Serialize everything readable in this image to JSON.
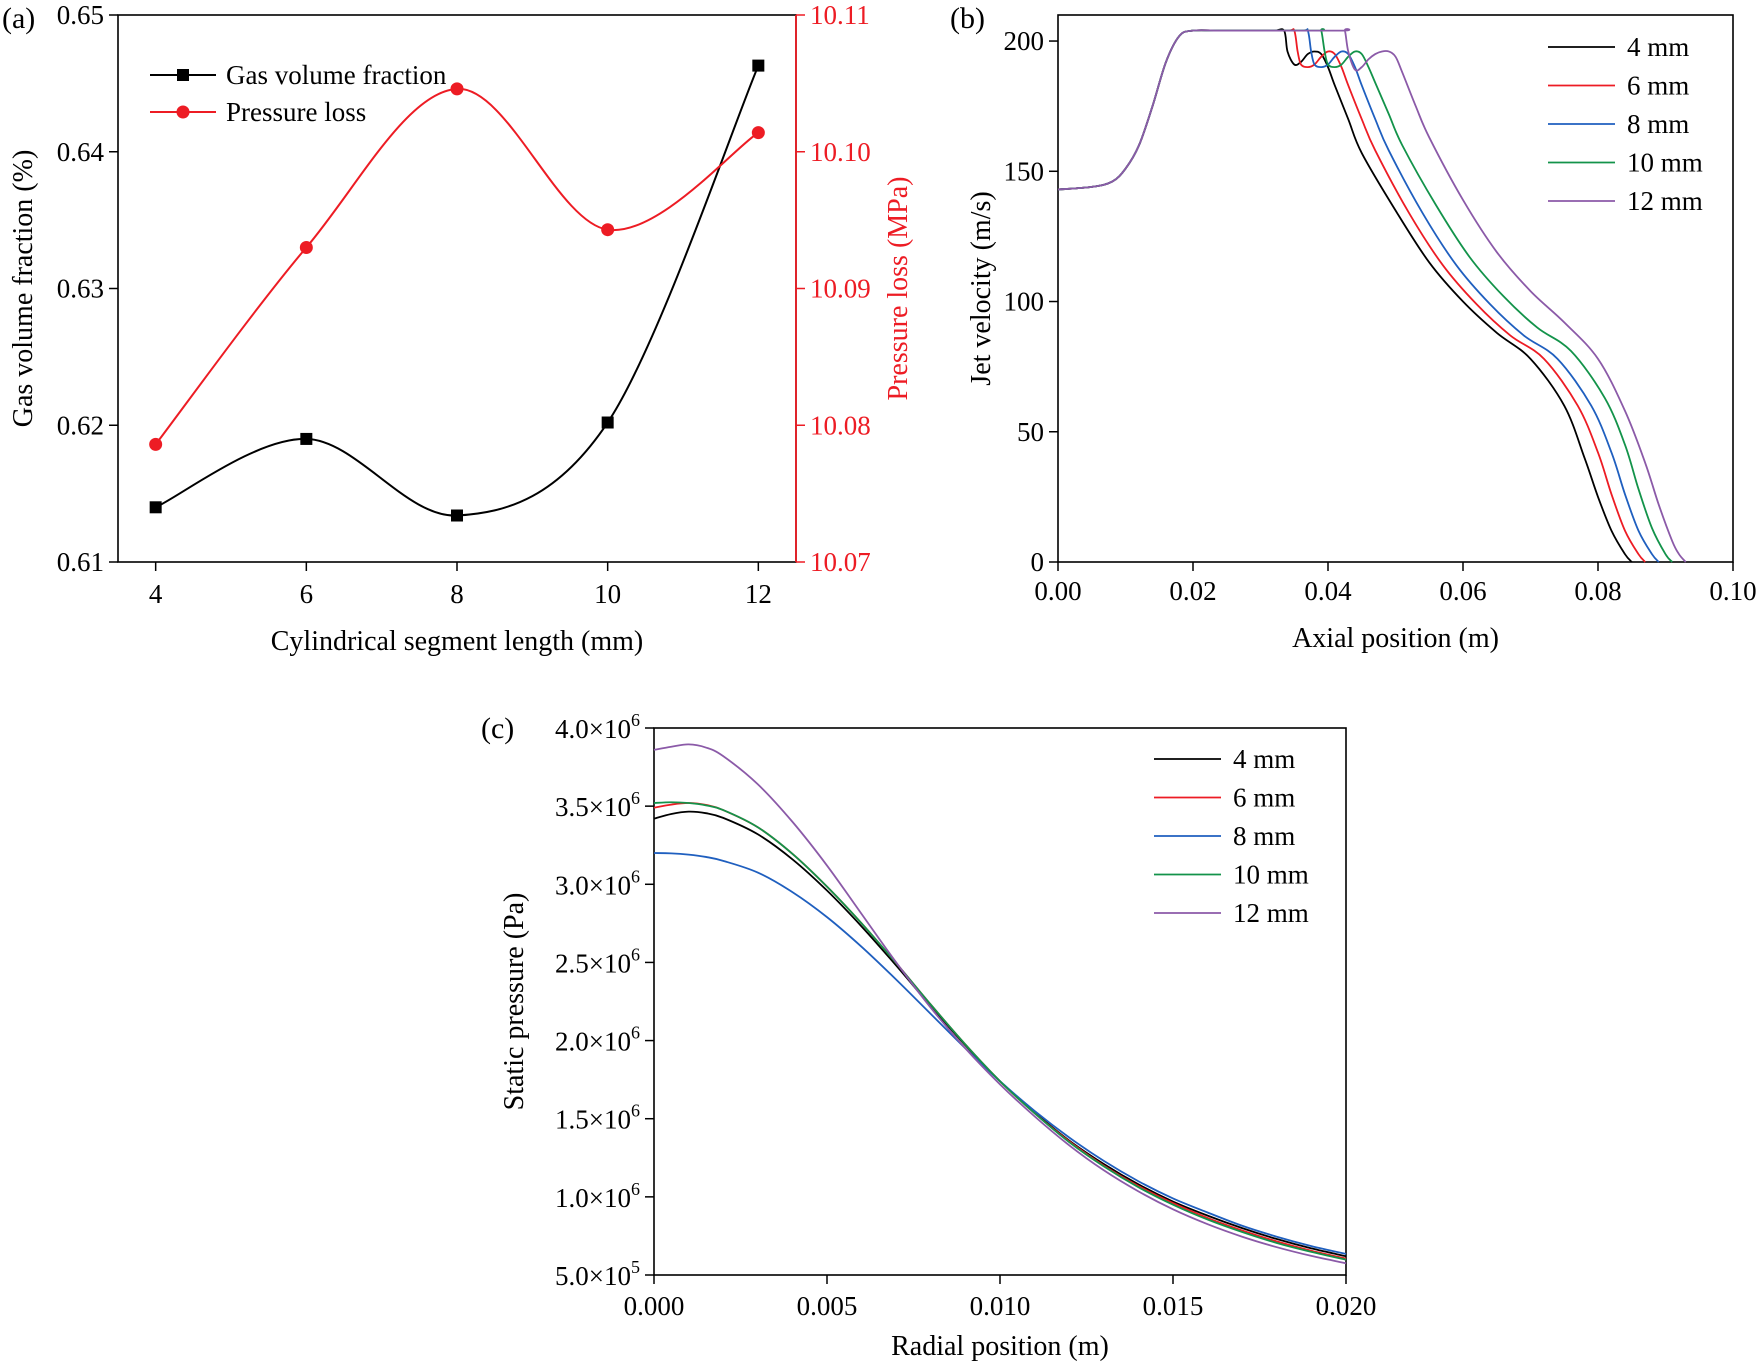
{
  "chart_data": [
    {
      "panel": "(a)",
      "type": "line",
      "xlabel": "Cylindrical segment length (mm)",
      "ylabel": "Gas volume fraction (%)",
      "ylabel_right": "Pressure loss (MPa)",
      "x": [
        4,
        6,
        8,
        10,
        12
      ],
      "xlim": [
        3.5,
        12.5
      ],
      "xticks": [
        "4",
        "6",
        "8",
        "10",
        "12"
      ],
      "ylim": [
        0.61,
        0.65
      ],
      "yticks": [
        "0.61",
        "0.62",
        "0.63",
        "0.64",
        "0.65"
      ],
      "ylim_right": [
        10.07,
        10.11
      ],
      "yticks_right": [
        "10.07",
        "10.08",
        "10.09",
        "10.10",
        "10.11"
      ],
      "series": [
        {
          "name": "Gas volume fraction",
          "axis": "left",
          "color": "#000000",
          "marker": "square",
          "values": [
            0.614,
            0.619,
            0.6134,
            0.6202,
            0.6463
          ]
        },
        {
          "name": "Pressure loss",
          "axis": "right",
          "color": "#ed1c24",
          "marker": "circle",
          "values": [
            10.0786,
            10.093,
            10.1046,
            10.0943,
            10.1014
          ]
        }
      ],
      "legend_position": "top-left"
    },
    {
      "panel": "(b)",
      "type": "line",
      "xlabel": "Axial position (m)",
      "ylabel": "Jet velocity (m/s)",
      "xlim": [
        0,
        0.1
      ],
      "xticks": [
        "0.00",
        "0.02",
        "0.04",
        "0.06",
        "0.08",
        "0.10"
      ],
      "ylim": [
        0,
        210
      ],
      "yticks": [
        "0",
        "50",
        "100",
        "150",
        "200"
      ],
      "legend_position": "top-right",
      "series": [
        {
          "name": "4 mm",
          "color": "#000000",
          "x": [
            0,
            0.005,
            0.008,
            0.01,
            0.012,
            0.014,
            0.016,
            0.018,
            0.02,
            0.024,
            0.028,
            0.032,
            0.0335,
            0.034,
            0.035,
            0.036,
            0.037,
            0.038,
            0.039,
            0.04,
            0.041,
            0.043,
            0.045,
            0.05,
            0.055,
            0.06,
            0.065,
            0.07,
            0.075,
            0.078,
            0.08,
            0.082,
            0.084,
            0.085
          ],
          "y": [
            143,
            144,
            146,
            151,
            160,
            175,
            192,
            202,
            204,
            204,
            204,
            204,
            204,
            196,
            191,
            192,
            195,
            196,
            195,
            190,
            183,
            170,
            157,
            135,
            115,
            100,
            88,
            78,
            60,
            40,
            25,
            12,
            3,
            0
          ]
        },
        {
          "name": "6 mm",
          "color": "#ed1c24",
          "x": [
            0,
            0.005,
            0.008,
            0.01,
            0.012,
            0.014,
            0.016,
            0.018,
            0.02,
            0.024,
            0.028,
            0.034,
            0.035,
            0.0355,
            0.036,
            0.037,
            0.038,
            0.039,
            0.04,
            0.041,
            0.042,
            0.043,
            0.045,
            0.047,
            0.052,
            0.057,
            0.062,
            0.067,
            0.072,
            0.077,
            0.08,
            0.082,
            0.084,
            0.086,
            0.087
          ],
          "y": [
            143,
            144,
            146,
            151,
            160,
            175,
            192,
            202,
            204,
            204,
            204,
            204,
            204,
            196,
            191,
            190,
            191,
            194,
            196,
            195,
            190,
            183,
            170,
            158,
            134,
            114,
            99,
            87,
            78,
            60,
            42,
            26,
            12,
            3,
            0
          ]
        },
        {
          "name": "8 mm",
          "color": "#1f5fbf",
          "x": [
            0,
            0.005,
            0.008,
            0.01,
            0.012,
            0.014,
            0.016,
            0.018,
            0.02,
            0.024,
            0.028,
            0.036,
            0.037,
            0.0375,
            0.038,
            0.039,
            0.04,
            0.041,
            0.042,
            0.043,
            0.044,
            0.045,
            0.047,
            0.049,
            0.054,
            0.059,
            0.064,
            0.069,
            0.074,
            0.079,
            0.082,
            0.084,
            0.086,
            0.088,
            0.089
          ],
          "y": [
            143,
            144,
            146,
            151,
            160,
            175,
            192,
            202,
            204,
            204,
            204,
            204,
            204,
            196,
            191,
            190,
            191,
            194,
            196,
            195,
            190,
            183,
            170,
            158,
            134,
            114,
            99,
            87,
            78,
            60,
            42,
            26,
            12,
            3,
            0
          ]
        },
        {
          "name": "10 mm",
          "color": "#13934a",
          "x": [
            0,
            0.005,
            0.008,
            0.01,
            0.012,
            0.014,
            0.016,
            0.018,
            0.02,
            0.024,
            0.028,
            0.0385,
            0.039,
            0.0395,
            0.04,
            0.041,
            0.042,
            0.043,
            0.044,
            0.045,
            0.046,
            0.047,
            0.049,
            0.051,
            0.056,
            0.061,
            0.066,
            0.071,
            0.076,
            0.081,
            0.084,
            0.086,
            0.088,
            0.09,
            0.091
          ],
          "y": [
            143,
            144,
            146,
            151,
            160,
            175,
            192,
            202,
            204,
            204,
            204,
            204,
            204,
            196,
            191,
            190,
            191,
            194,
            196,
            195,
            190,
            184,
            172,
            160,
            137,
            117,
            102,
            90,
            81,
            63,
            45,
            28,
            13,
            3,
            0
          ]
        },
        {
          "name": "12 mm",
          "color": "#8b5aa8",
          "x": [
            0,
            0.005,
            0.008,
            0.01,
            0.012,
            0.014,
            0.016,
            0.018,
            0.02,
            0.024,
            0.028,
            0.042,
            0.0425,
            0.043,
            0.044,
            0.045,
            0.046,
            0.047,
            0.048,
            0.049,
            0.05,
            0.051,
            0.053,
            0.055,
            0.06,
            0.065,
            0.07,
            0.075,
            0.08,
            0.084,
            0.087,
            0.089,
            0.091,
            0.092,
            0.093
          ],
          "y": [
            143,
            144,
            146,
            151,
            160,
            175,
            192,
            202,
            204,
            204,
            204,
            204,
            204,
            196,
            189,
            190,
            193,
            195,
            196,
            196,
            194,
            188,
            175,
            163,
            139,
            119,
            104,
            92,
            78,
            58,
            38,
            22,
            8,
            3,
            0
          ]
        }
      ]
    },
    {
      "panel": "(c)",
      "type": "line",
      "xlabel": "Radial position (m)",
      "ylabel": "Static pressure (Pa)",
      "xlim": [
        0,
        0.02
      ],
      "xticks": [
        "0.000",
        "0.005",
        "0.010",
        "0.015",
        "0.020"
      ],
      "ylim": [
        500000,
        4000000
      ],
      "yticks": [
        {
          "mantissa": "5.0",
          "exp": "5"
        },
        {
          "mantissa": "1.0",
          "exp": "6"
        },
        {
          "mantissa": "1.5",
          "exp": "6"
        },
        {
          "mantissa": "2.0",
          "exp": "6"
        },
        {
          "mantissa": "2.5",
          "exp": "6"
        },
        {
          "mantissa": "3.0",
          "exp": "6"
        },
        {
          "mantissa": "3.5",
          "exp": "6"
        },
        {
          "mantissa": "4.0",
          "exp": "6"
        }
      ],
      "ytick_times": "×10",
      "legend_position": "top-right",
      "series": [
        {
          "name": "4 mm",
          "color": "#000000",
          "x": [
            0,
            0.0005,
            0.001,
            0.0015,
            0.002,
            0.003,
            0.004,
            0.005,
            0.006,
            0.007,
            0.008,
            0.009,
            0.01,
            0.011,
            0.012,
            0.013,
            0.014,
            0.015,
            0.016,
            0.017,
            0.018,
            0.019,
            0.02
          ],
          "y": [
            3420000,
            3450000,
            3465000,
            3455000,
            3425000,
            3320000,
            3160000,
            2960000,
            2730000,
            2480000,
            2220000,
            1970000,
            1740000,
            1540000,
            1360000,
            1210000,
            1080000,
            970000,
            880000,
            800000,
            730000,
            670000,
            620000
          ]
        },
        {
          "name": "6 mm",
          "color": "#ed1c24",
          "x": [
            0,
            0.0005,
            0.001,
            0.0015,
            0.002,
            0.003,
            0.004,
            0.005,
            0.006,
            0.007,
            0.008,
            0.009,
            0.01,
            0.011,
            0.012,
            0.013,
            0.014,
            0.015,
            0.016,
            0.017,
            0.018,
            0.019,
            0.02
          ],
          "y": [
            3490000,
            3510000,
            3520000,
            3508000,
            3475000,
            3365000,
            3195000,
            2985000,
            2750000,
            2495000,
            2230000,
            1975000,
            1740000,
            1535000,
            1355000,
            1200000,
            1070000,
            960000,
            865000,
            785000,
            715000,
            655000,
            605000
          ]
        },
        {
          "name": "8 mm",
          "color": "#1f5fbf",
          "x": [
            0,
            0.0005,
            0.001,
            0.0015,
            0.002,
            0.003,
            0.004,
            0.005,
            0.006,
            0.007,
            0.008,
            0.009,
            0.01,
            0.011,
            0.012,
            0.013,
            0.014,
            0.015,
            0.016,
            0.017,
            0.018,
            0.019,
            0.02
          ],
          "y": [
            3200000,
            3198000,
            3190000,
            3175000,
            3150000,
            3075000,
            2950000,
            2790000,
            2600000,
            2390000,
            2170000,
            1950000,
            1740000,
            1550000,
            1380000,
            1230000,
            1100000,
            990000,
            900000,
            815000,
            745000,
            685000,
            635000
          ]
        },
        {
          "name": "10 mm",
          "color": "#13934a",
          "x": [
            0,
            0.0005,
            0.001,
            0.0015,
            0.002,
            0.003,
            0.004,
            0.005,
            0.006,
            0.007,
            0.008,
            0.009,
            0.01,
            0.011,
            0.012,
            0.013,
            0.014,
            0.015,
            0.016,
            0.017,
            0.018,
            0.019,
            0.02
          ],
          "y": [
            3520000,
            3525000,
            3520000,
            3505000,
            3475000,
            3365000,
            3195000,
            2985000,
            2750000,
            2495000,
            2230000,
            1975000,
            1740000,
            1535000,
            1350000,
            1195000,
            1062000,
            950000,
            855000,
            775000,
            705000,
            648000,
            598000
          ]
        },
        {
          "name": "12 mm",
          "color": "#8b5aa8",
          "x": [
            0,
            0.0005,
            0.001,
            0.0015,
            0.002,
            0.003,
            0.004,
            0.005,
            0.006,
            0.007,
            0.008,
            0.009,
            0.01,
            0.011,
            0.012,
            0.013,
            0.014,
            0.015,
            0.016,
            0.017,
            0.018,
            0.019,
            0.02
          ],
          "y": [
            3860000,
            3880000,
            3895000,
            3875000,
            3820000,
            3640000,
            3400000,
            3120000,
            2810000,
            2500000,
            2210000,
            1950000,
            1720000,
            1515000,
            1330000,
            1170000,
            1035000,
            920000,
            825000,
            745000,
            678000,
            622000,
            575000
          ]
        }
      ]
    }
  ]
}
